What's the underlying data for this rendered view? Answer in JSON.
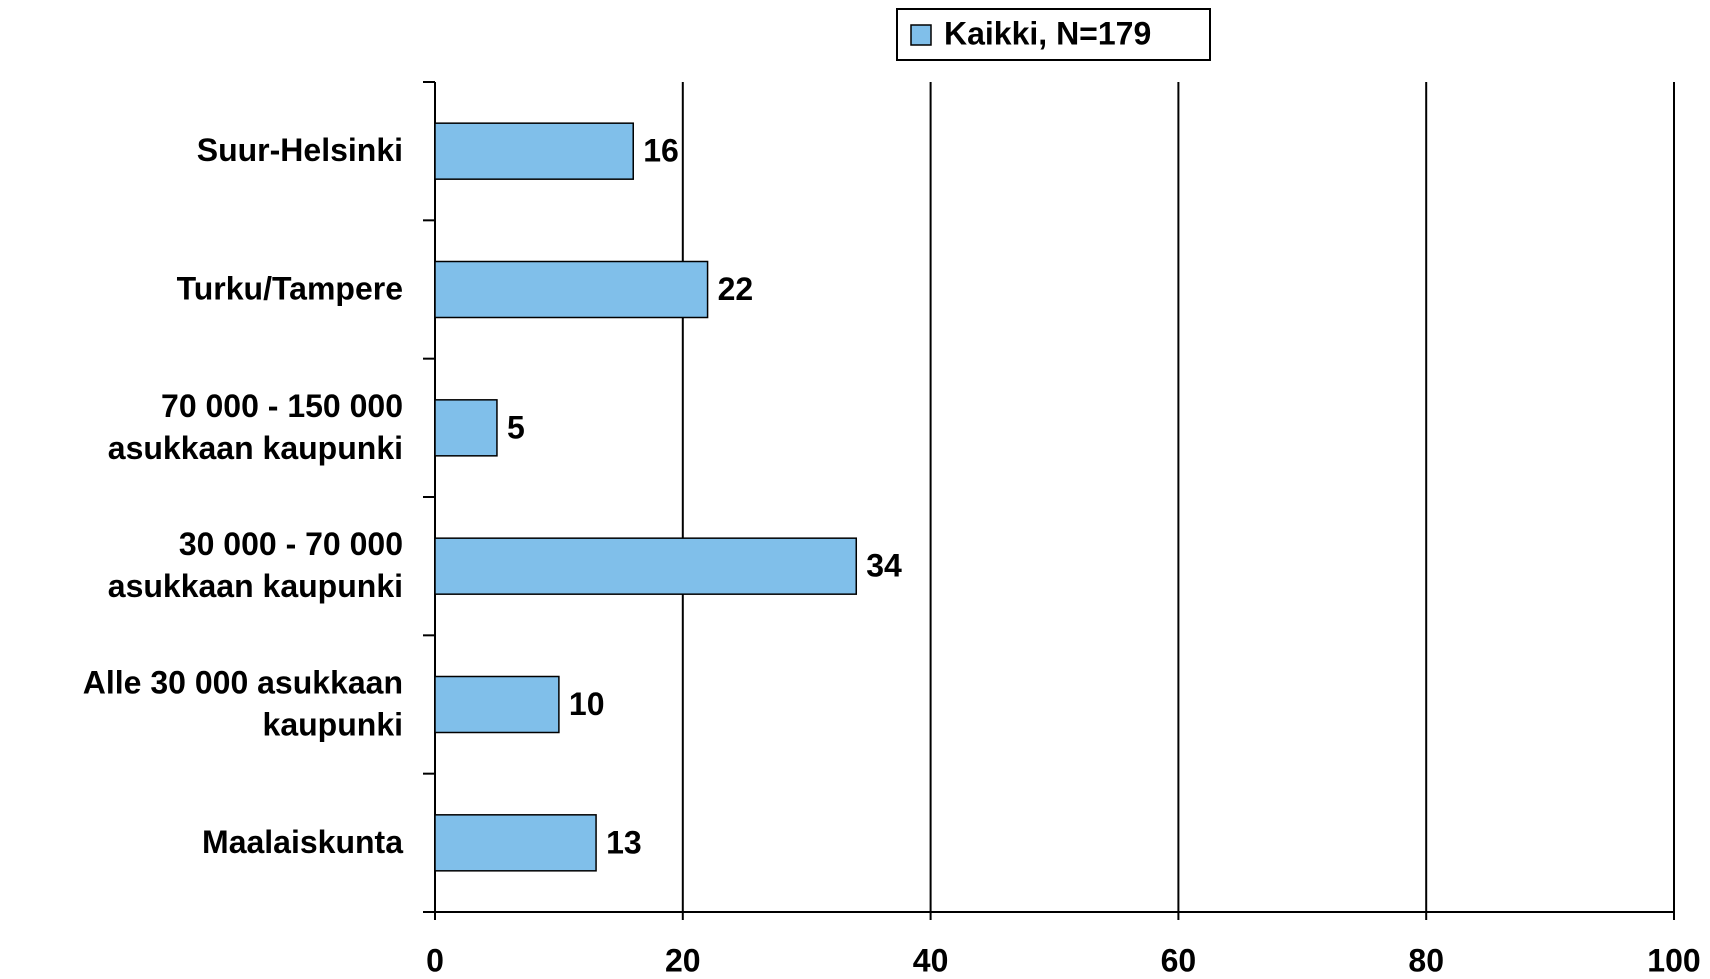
{
  "chart_data": {
    "type": "barh",
    "categories": [
      "Suur-Helsinki",
      "Turku/Tampere",
      "70 000 - 150 000\nasukkaan kaupunki",
      "30 000 - 70 000\nasukkaan kaupunki",
      "Alle 30 000 asukkaan\nkaupunki",
      "Maalaiskunta"
    ],
    "series": [
      {
        "name": "Kaikki, N=179",
        "color": "#80bfea",
        "values": [
          16,
          22,
          5,
          34,
          10,
          13
        ]
      }
    ],
    "xlim": [
      0,
      100
    ],
    "xticks": [
      0,
      20,
      40,
      60,
      80,
      100
    ],
    "grid": true,
    "legend": "top"
  }
}
